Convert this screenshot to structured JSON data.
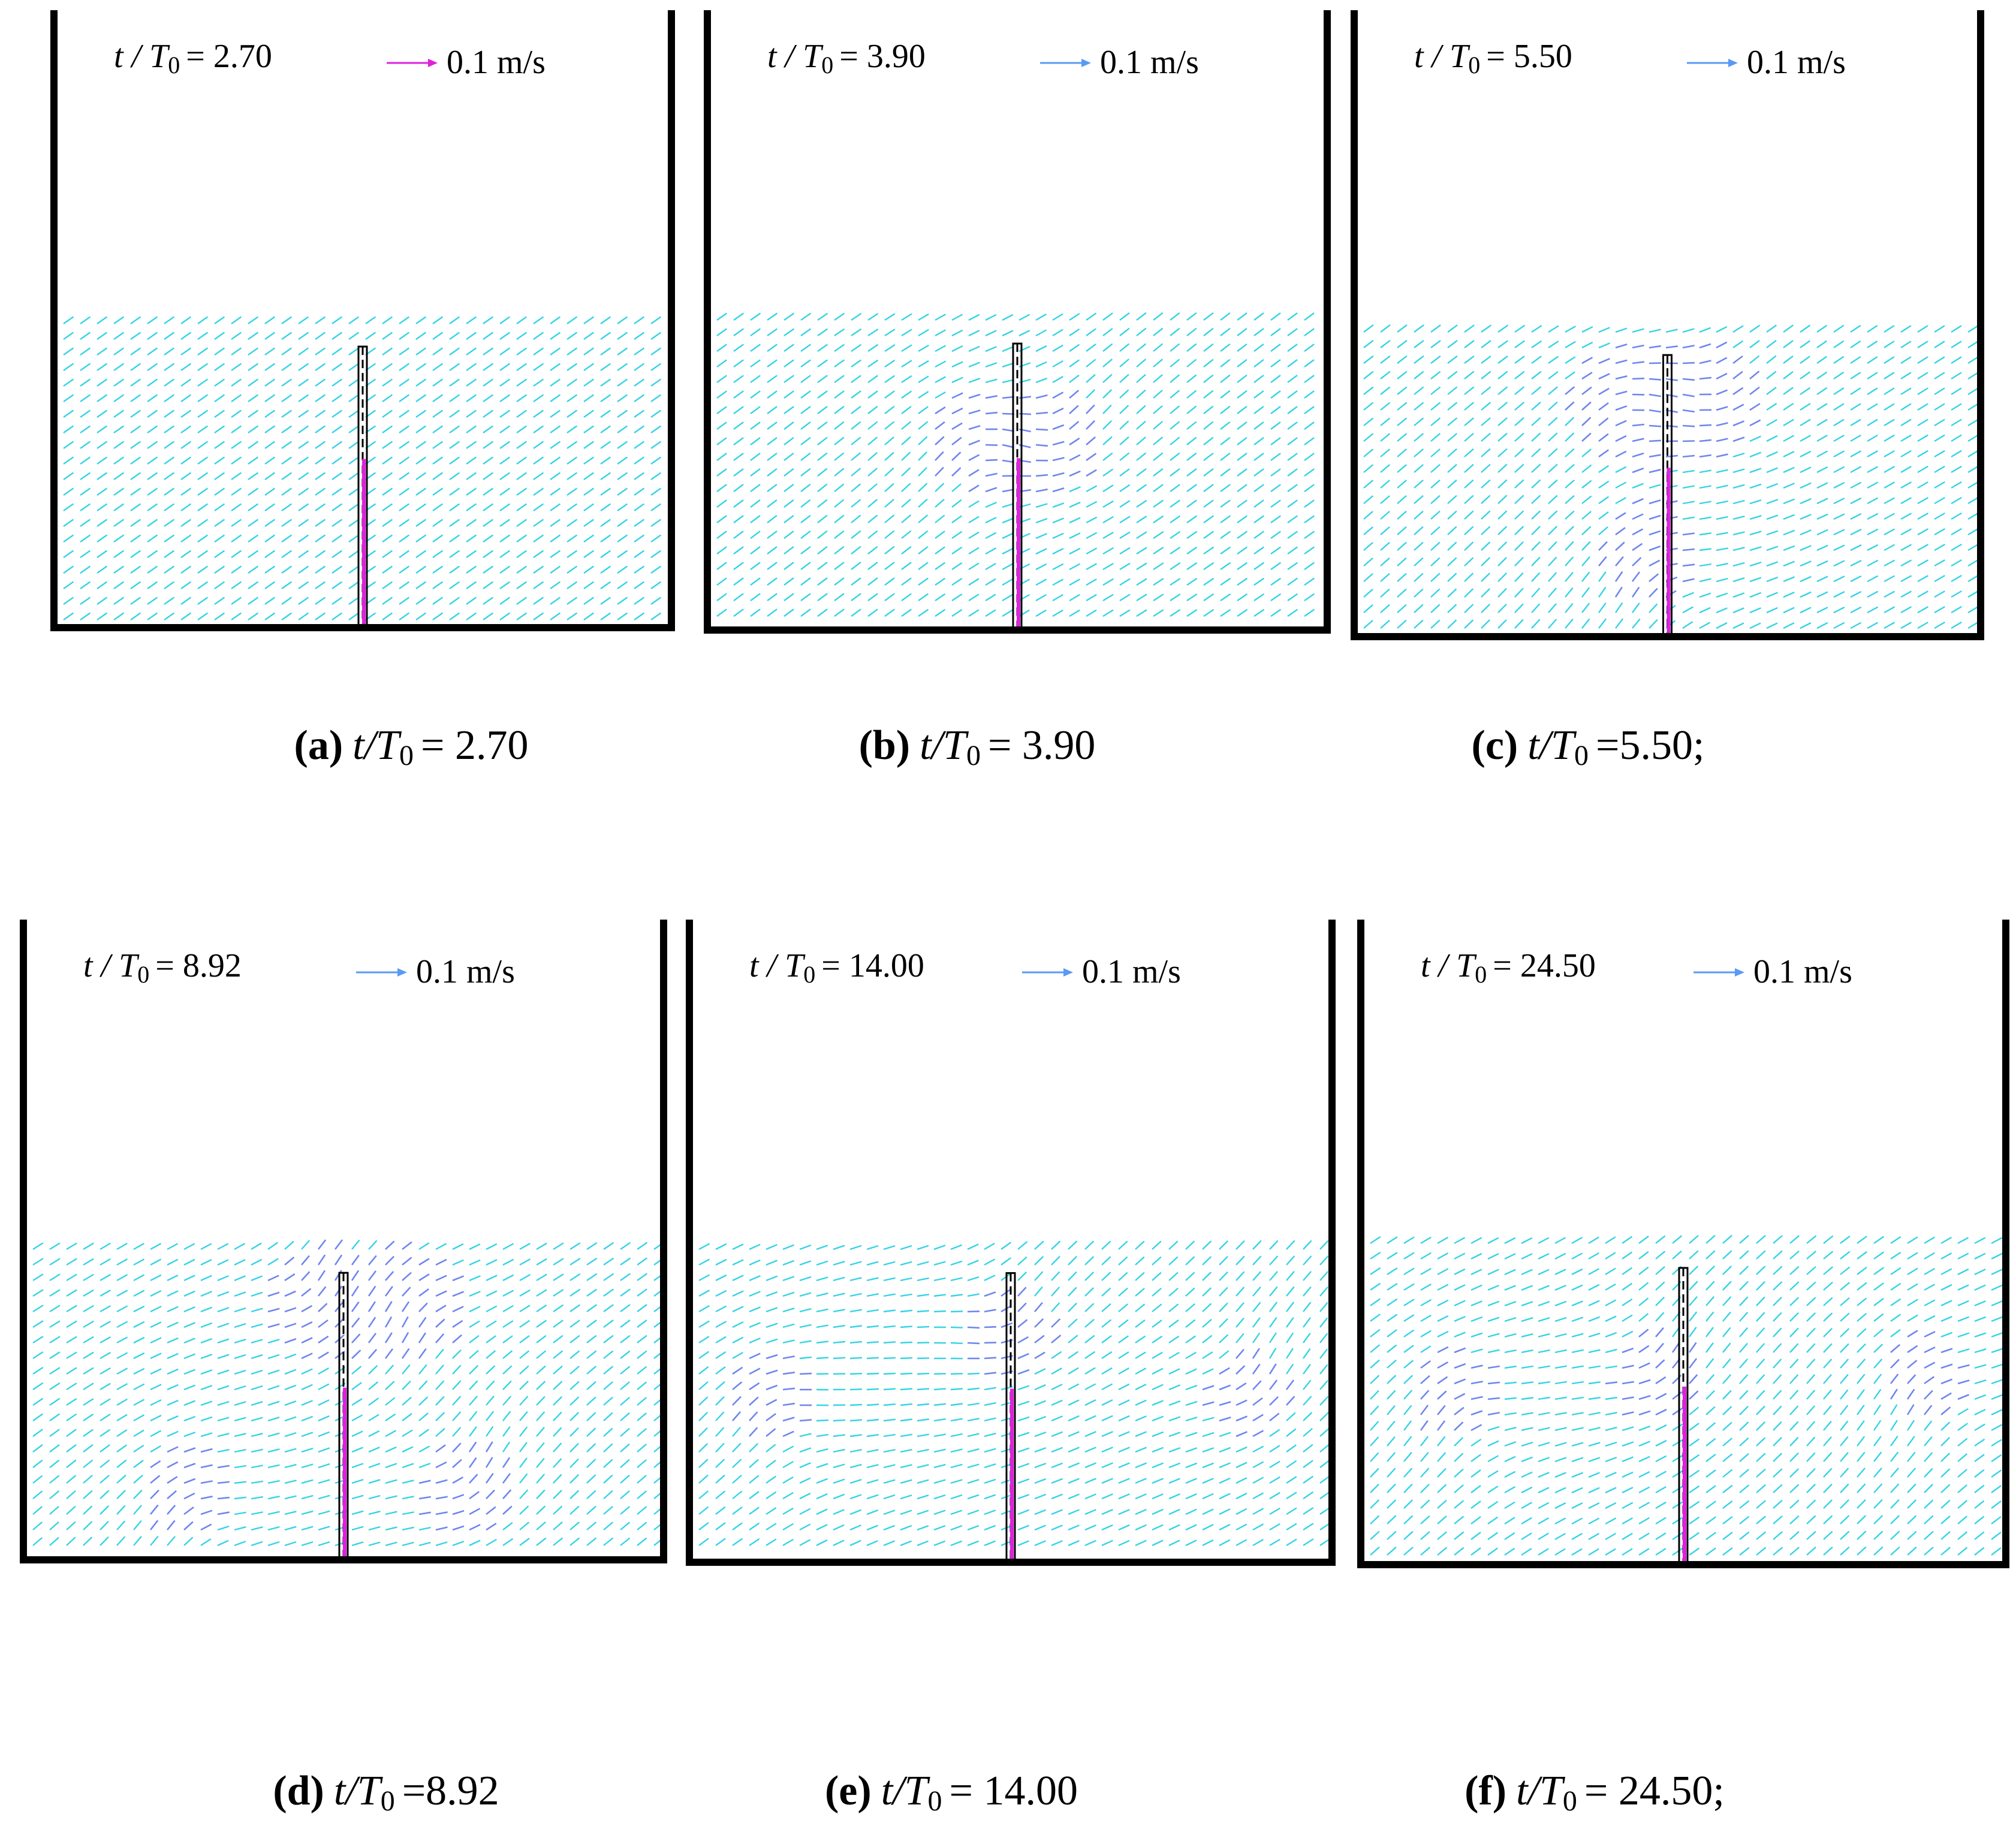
{
  "panels": [
    {
      "time": {
        "symbol": "t / T",
        "sub": "0",
        "value": "= 2.70"
      },
      "scale": "0.1 m/s",
      "arrow_color": "#e020e0",
      "caption": {
        "tag": "(a)",
        "symbol": "t/T",
        "sub": "0",
        "value": "= 2.70"
      }
    },
    {
      "time": {
        "symbol": "t / T",
        "sub": "0",
        "value": "= 3.90"
      },
      "scale": "0.1 m/s",
      "arrow_color": "#5a9af5",
      "caption": {
        "tag": "(b)",
        "symbol": "t/T",
        "sub": "0",
        "value": "= 3.90"
      }
    },
    {
      "time": {
        "symbol": "t / T",
        "sub": "0",
        "value": "= 5.50"
      },
      "scale": "0.1 m/s",
      "arrow_color": "#5a9af5",
      "caption": {
        "tag": "(c)",
        "symbol": "t/T",
        "sub": "0",
        "value": "=5.50;"
      }
    },
    {
      "time": {
        "symbol": "t / T",
        "sub": "0",
        "value": "= 8.92"
      },
      "scale": "0.1 m/s",
      "arrow_color": "#5a9af5",
      "caption": {
        "tag": "(d)",
        "symbol": "t/T",
        "sub": "0",
        "value": "=8.92"
      }
    },
    {
      "time": {
        "symbol": "t / T",
        "sub": "0",
        "value": "= 14.00"
      },
      "scale": "0.1 m/s",
      "arrow_color": "#5a9af5",
      "caption": {
        "tag": "(e)",
        "symbol": "t/T",
        "sub": "0",
        "value": "= 14.00"
      }
    },
    {
      "time": {
        "symbol": "t / T",
        "sub": "0",
        "value": "= 24.50"
      },
      "scale": "0.1 m/s",
      "arrow_color": "#5a9af5",
      "caption": {
        "tag": "(f)",
        "symbol": "t/T",
        "sub": "0",
        "value": "= 24.50;"
      }
    }
  ]
}
